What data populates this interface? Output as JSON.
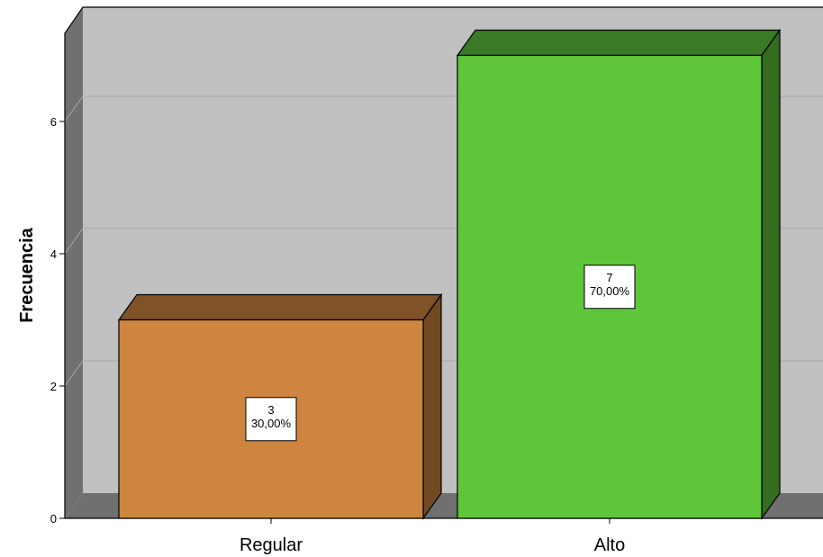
{
  "chart_data": {
    "type": "bar",
    "style": "3d",
    "categories": [
      "Regular",
      "Alto"
    ],
    "values": [
      3,
      7
    ],
    "percent_labels": [
      "30,00%",
      "70,00%"
    ],
    "colors": [
      "#cd853f",
      "#5fc53a"
    ],
    "ylabel": "Frecuencia",
    "xlabel": "",
    "ylim": [
      0,
      7.5
    ],
    "yticks": [
      "0",
      "2",
      "4",
      "6"
    ],
    "grid": true,
    "legend": "none"
  }
}
